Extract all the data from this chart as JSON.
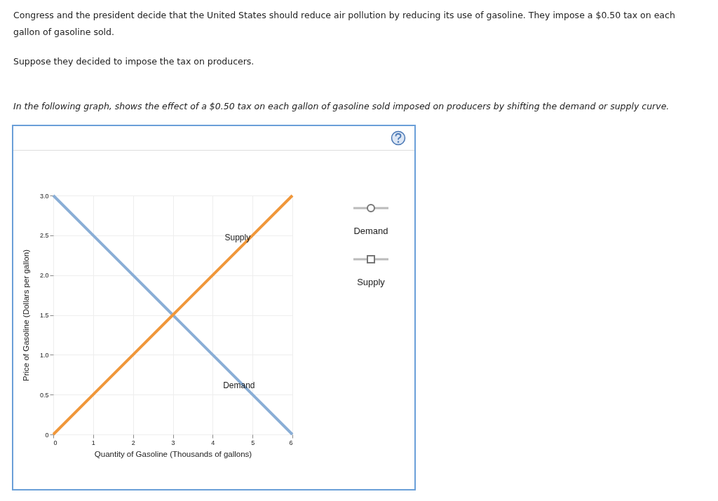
{
  "chart_data": {
    "type": "line",
    "title": "Congress and the president decide that the United States should reduce air pollution by reducing its use of gasoline. They impose a $0.50 tax on each gallon of gasoline sold.",
    "subtitle": "Suppose they decided to impose the tax on producers.",
    "xlabel": "Quantity of Gasoline (Thousands of gallons)",
    "ylabel": "Price of Gasoline (Dollars per gallon)",
    "series": [
      {
        "name": "Demand",
        "color": "#8aaed6",
        "x": [
          0,
          1,
          2,
          3,
          4,
          5,
          6
        ],
        "values": [
          3,
          2.5,
          2,
          1.5,
          1,
          0.5,
          0
        ]
      },
      {
        "name": "Supply",
        "color": "#f0973a",
        "x": [
          0,
          1,
          2,
          3,
          4,
          5,
          6
        ],
        "values": [
          0,
          0.5,
          1,
          1.5,
          2,
          2.5,
          3
        ]
      }
    ],
    "xlim": [
      0,
      6
    ],
    "xticks": [
      0,
      1,
      2,
      3,
      4,
      5,
      6
    ],
    "ylim": [
      0,
      3
    ],
    "yticks": [
      0,
      0.5,
      {
        "value": 1,
        "label": "1.0"
      },
      1.5,
      {
        "value": 2,
        "label": "2.0"
      },
      2.5,
      {
        "value": 3,
        "label": "3.0"
      }
    ],
    "grid": true,
    "annotations": [
      "In the following graph, shows the effect of a $0.50 tax on each gallon of gasoline sold imposed on producers by shifting the demand or supply curve.",
      "Demand",
      "Supply"
    ]
  }
}
